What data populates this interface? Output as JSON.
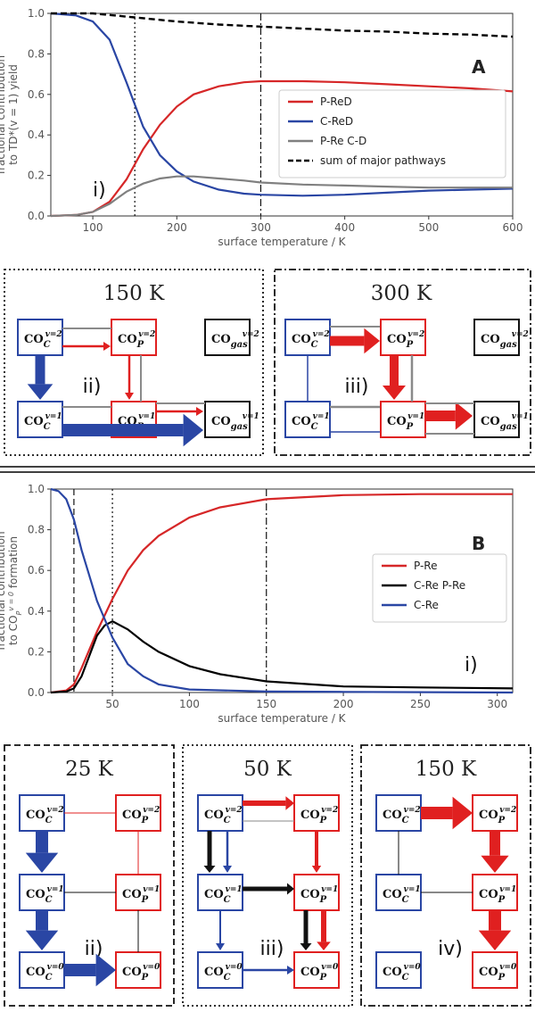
{
  "chart_data": [
    {
      "type": "line",
      "panel_label": "A",
      "xlabel": "surface temperature / K",
      "ylabel_line1": "fractional contribution",
      "ylabel_line2": "to TD*(v = 1) yield",
      "xlim": [
        50,
        600
      ],
      "ylim": [
        0,
        1.0
      ],
      "xticks": [
        100,
        200,
        300,
        400,
        500,
        600
      ],
      "yticks": [
        0.0,
        0.2,
        0.4,
        0.6,
        0.8,
        1.0
      ],
      "vlines": [
        {
          "x": 150,
          "style": "dotted"
        },
        {
          "x": 300,
          "style": "dashdot"
        }
      ],
      "annotation": "i)",
      "legend_position": "right-center",
      "series": [
        {
          "name": "P-ReD",
          "color": "#d62728",
          "style": "solid",
          "x": [
            50,
            80,
            100,
            120,
            140,
            160,
            180,
            200,
            220,
            250,
            280,
            300,
            350,
            400,
            450,
            500,
            550,
            600
          ],
          "y": [
            0.0,
            0.005,
            0.02,
            0.07,
            0.18,
            0.33,
            0.45,
            0.54,
            0.6,
            0.64,
            0.66,
            0.665,
            0.665,
            0.66,
            0.65,
            0.64,
            0.63,
            0.615
          ]
        },
        {
          "name": "C-ReD",
          "color": "#2a46a4",
          "style": "solid",
          "x": [
            50,
            80,
            100,
            120,
            140,
            160,
            180,
            200,
            220,
            250,
            280,
            300,
            350,
            400,
            450,
            500,
            550,
            600
          ],
          "y": [
            1.0,
            0.99,
            0.96,
            0.87,
            0.66,
            0.44,
            0.3,
            0.22,
            0.17,
            0.13,
            0.11,
            0.105,
            0.1,
            0.105,
            0.115,
            0.125,
            0.13,
            0.135
          ]
        },
        {
          "name": "P-Re C-D",
          "color": "#808080",
          "style": "solid",
          "x": [
            50,
            80,
            100,
            120,
            140,
            160,
            180,
            200,
            220,
            250,
            280,
            300,
            350,
            400,
            450,
            500,
            550,
            600
          ],
          "y": [
            0.0,
            0.005,
            0.02,
            0.06,
            0.12,
            0.16,
            0.185,
            0.195,
            0.195,
            0.185,
            0.175,
            0.165,
            0.155,
            0.15,
            0.145,
            0.14,
            0.14,
            0.14
          ]
        },
        {
          "name": "sum of major pathways",
          "color": "#000000",
          "style": "dashed",
          "x": [
            50,
            100,
            150,
            200,
            250,
            300,
            350,
            400,
            450,
            500,
            550,
            600
          ],
          "y": [
            1.0,
            1.0,
            0.98,
            0.96,
            0.945,
            0.935,
            0.925,
            0.915,
            0.91,
            0.9,
            0.895,
            0.885
          ]
        }
      ]
    },
    {
      "type": "line",
      "panel_label": "B",
      "xlabel": "surface temperature / K",
      "ylabel_line1": "fractional contribution",
      "ylabel_line2": "to CO",
      "ylabel_suffix": " formation",
      "xlim": [
        10,
        310
      ],
      "ylim": [
        0,
        1.0
      ],
      "xticks": [
        50,
        100,
        150,
        200,
        250,
        300
      ],
      "yticks": [
        0.0,
        0.2,
        0.4,
        0.6,
        0.8,
        1.0
      ],
      "vlines": [
        {
          "x": 25,
          "style": "dashed"
        },
        {
          "x": 50,
          "style": "dotted"
        },
        {
          "x": 150,
          "style": "dashdot"
        }
      ],
      "annotation": "i)",
      "legend_position": "right-center",
      "series": [
        {
          "name": "P-Re",
          "color": "#d62728",
          "style": "solid",
          "x": [
            10,
            20,
            25,
            30,
            40,
            50,
            60,
            70,
            80,
            100,
            120,
            150,
            200,
            250,
            310
          ],
          "y": [
            0.0,
            0.01,
            0.04,
            0.12,
            0.3,
            0.46,
            0.6,
            0.7,
            0.77,
            0.86,
            0.91,
            0.95,
            0.97,
            0.975,
            0.975
          ]
        },
        {
          "name": "C-Re P-Re",
          "color": "#000000",
          "style": "solid",
          "x": [
            10,
            20,
            25,
            30,
            40,
            45,
            50,
            60,
            70,
            80,
            100,
            120,
            150,
            200,
            250,
            310
          ],
          "y": [
            0.0,
            0.005,
            0.02,
            0.08,
            0.28,
            0.33,
            0.35,
            0.31,
            0.25,
            0.2,
            0.13,
            0.09,
            0.055,
            0.03,
            0.025,
            0.02
          ]
        },
        {
          "name": "C-Re",
          "color": "#2a46a4",
          "style": "solid",
          "x": [
            10,
            15,
            20,
            25,
            30,
            40,
            50,
            60,
            70,
            80,
            100,
            150,
            200,
            310
          ],
          "y": [
            1.0,
            0.99,
            0.95,
            0.85,
            0.7,
            0.45,
            0.27,
            0.14,
            0.08,
            0.04,
            0.015,
            0.005,
            0.003,
            0.0
          ]
        }
      ]
    }
  ],
  "diagrams": {
    "panelA": [
      {
        "temp": "150 K",
        "label": "ii)"
      },
      {
        "temp": "300 K",
        "label": "iii)"
      }
    ],
    "panelB": [
      {
        "temp": "25 K",
        "label": "ii)"
      },
      {
        "temp": "50 K",
        "label": "iii)"
      },
      {
        "temp": "150 K",
        "label": "iv)"
      }
    ],
    "nodes": {
      "co": "CO",
      "c": "C",
      "p": "P",
      "gas": "gas",
      "v2": "v=2",
      "v1": "v=1",
      "v0": "v=0"
    }
  },
  "colors": {
    "red": "#e02020",
    "blue": "#2a46a4",
    "gray": "#8a8a8a",
    "black": "#000000"
  }
}
